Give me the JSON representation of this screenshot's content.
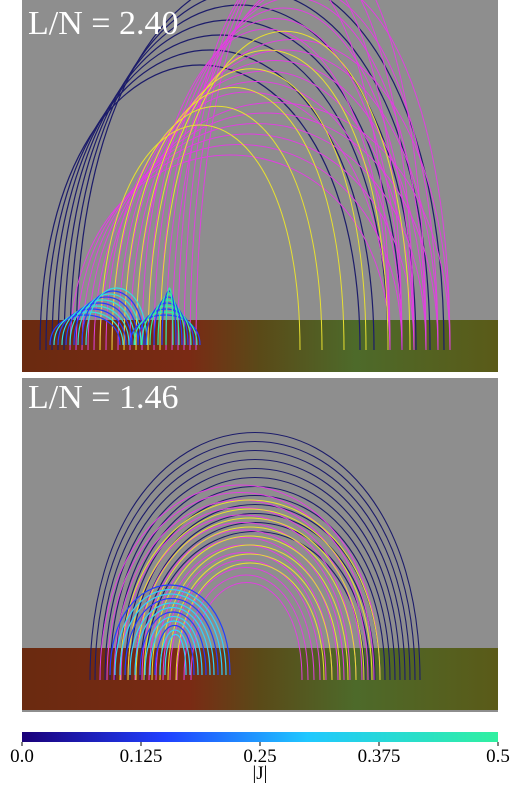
{
  "panels": [
    {
      "label": "L/N = 2.40"
    },
    {
      "label": "L/N = 1.46"
    }
  ],
  "colorbar": {
    "title": "|J|",
    "lim": [
      0,
      0.5
    ],
    "ticks": [
      {
        "value": 0,
        "label": "0.0"
      },
      0.125,
      0.25,
      0.375,
      0.5
    ]
  }
}
